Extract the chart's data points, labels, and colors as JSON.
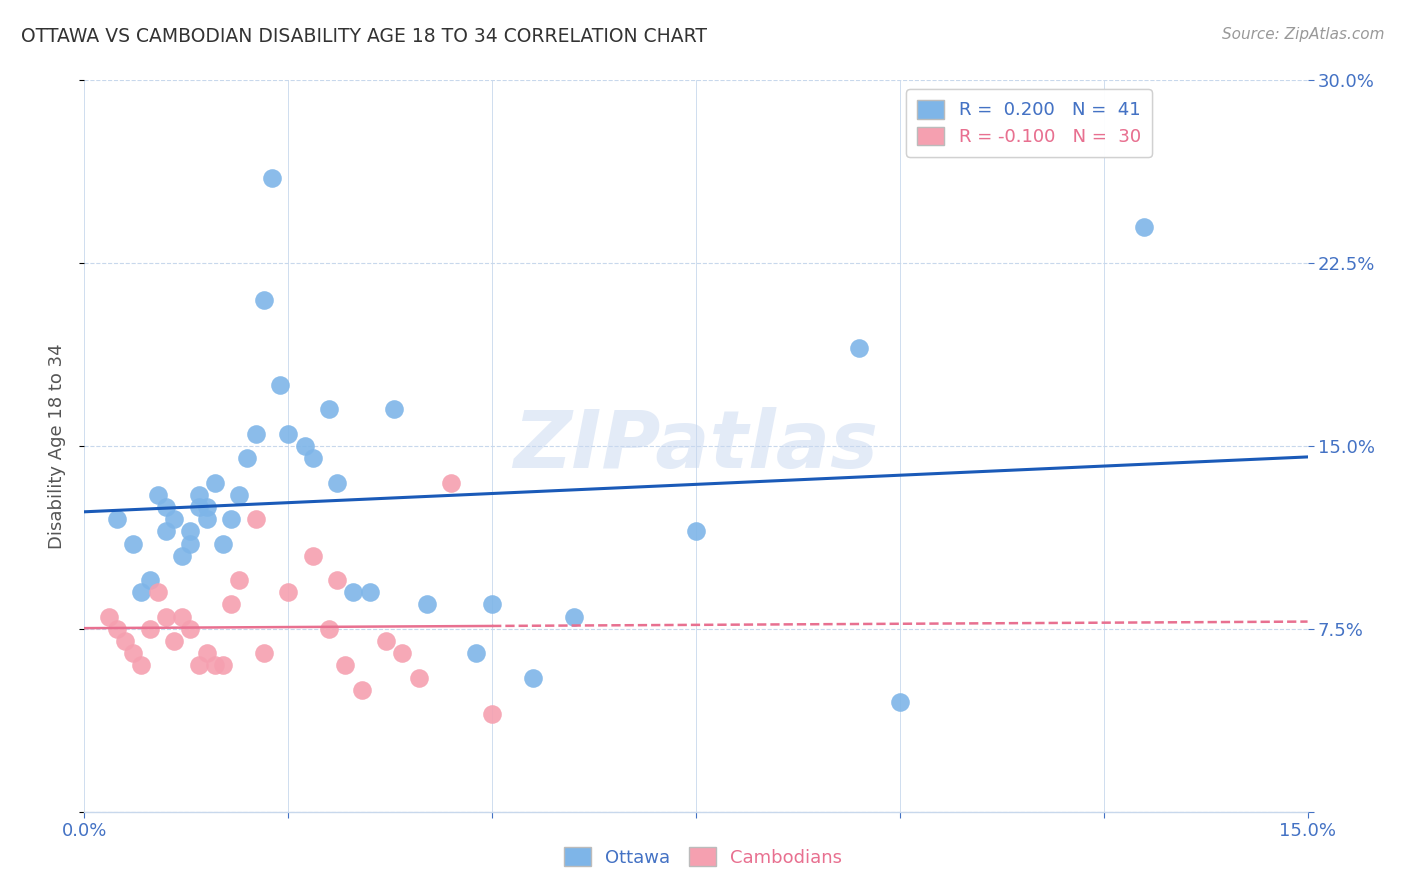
{
  "title": "OTTAWA VS CAMBODIAN DISABILITY AGE 18 TO 34 CORRELATION CHART",
  "source": "Source: ZipAtlas.com",
  "ylabel": "Disability Age 18 to 34",
  "xlim": [
    0.0,
    0.15
  ],
  "ylim": [
    -0.005,
    0.31
  ],
  "plot_ylim": [
    0.0,
    0.3
  ],
  "xticks": [
    0.0,
    0.025,
    0.05,
    0.075,
    0.1,
    0.125,
    0.15
  ],
  "yticks": [
    0.0,
    0.075,
    0.15,
    0.225,
    0.3
  ],
  "ytick_labels": [
    "",
    "7.5%",
    "15.0%",
    "22.5%",
    "30.0%"
  ],
  "xtick_labels": [
    "0.0%",
    "",
    "",
    "",
    "",
    "",
    "15.0%"
  ],
  "ottawa_color": "#7eb5e8",
  "cambodian_color": "#f5a0b0",
  "trend_ottawa_color": "#1a5ab8",
  "trend_cambodian_color": "#e87090",
  "watermark": "ZIPatlas",
  "grid_color": "#c8d8ec",
  "ottawa_x": [
    0.004,
    0.006,
    0.007,
    0.008,
    0.009,
    0.01,
    0.01,
    0.011,
    0.012,
    0.013,
    0.013,
    0.014,
    0.014,
    0.015,
    0.015,
    0.016,
    0.017,
    0.018,
    0.019,
    0.02,
    0.021,
    0.022,
    0.023,
    0.024,
    0.025,
    0.027,
    0.028,
    0.03,
    0.031,
    0.033,
    0.035,
    0.038,
    0.042,
    0.048,
    0.05,
    0.055,
    0.06,
    0.075,
    0.095,
    0.1,
    0.13
  ],
  "ottawa_y": [
    0.12,
    0.11,
    0.09,
    0.095,
    0.13,
    0.125,
    0.115,
    0.12,
    0.105,
    0.115,
    0.11,
    0.125,
    0.13,
    0.125,
    0.12,
    0.135,
    0.11,
    0.12,
    0.13,
    0.145,
    0.155,
    0.21,
    0.26,
    0.175,
    0.155,
    0.15,
    0.145,
    0.165,
    0.135,
    0.09,
    0.09,
    0.165,
    0.085,
    0.065,
    0.085,
    0.055,
    0.08,
    0.115,
    0.19,
    0.045,
    0.24
  ],
  "cambodian_x": [
    0.003,
    0.004,
    0.005,
    0.006,
    0.007,
    0.008,
    0.009,
    0.01,
    0.011,
    0.012,
    0.013,
    0.014,
    0.015,
    0.016,
    0.017,
    0.018,
    0.019,
    0.021,
    0.022,
    0.025,
    0.028,
    0.03,
    0.031,
    0.032,
    0.034,
    0.037,
    0.039,
    0.041,
    0.045,
    0.05
  ],
  "cambodian_y": [
    0.08,
    0.075,
    0.07,
    0.065,
    0.06,
    0.075,
    0.09,
    0.08,
    0.07,
    0.08,
    0.075,
    0.06,
    0.065,
    0.06,
    0.06,
    0.085,
    0.095,
    0.12,
    0.065,
    0.09,
    0.105,
    0.075,
    0.095,
    0.06,
    0.05,
    0.07,
    0.065,
    0.055,
    0.135,
    0.04
  ],
  "ottawa_trend_R": 0.2,
  "cambodian_trend_R": -0.1,
  "ottawa_N": 41,
  "cambodian_N": 30
}
